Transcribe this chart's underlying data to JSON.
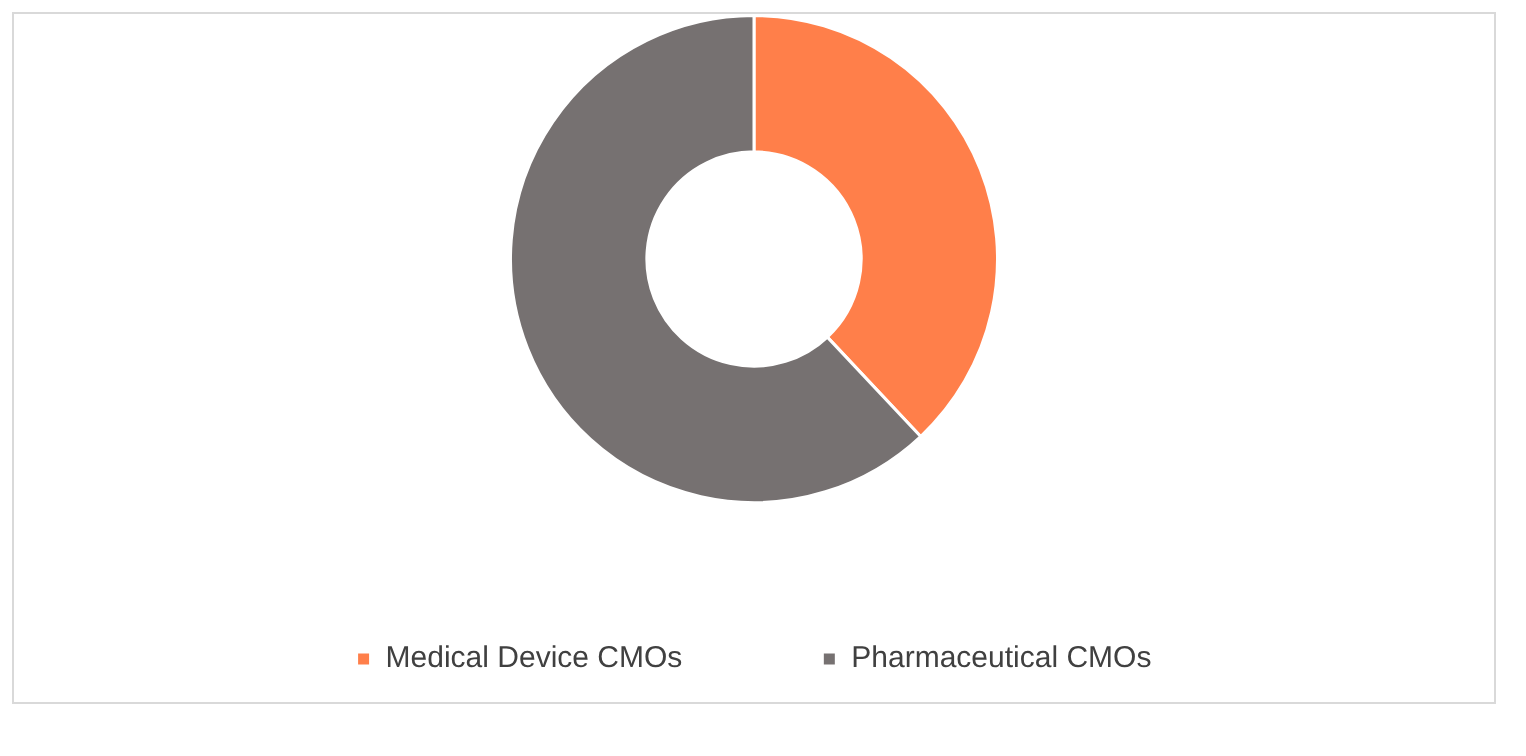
{
  "chart_data": {
    "type": "donut",
    "categories": [
      "Medical Device CMOs",
      "Pharmaceutical CMOs"
    ],
    "values": [
      38,
      62
    ],
    "colors": [
      "#ff7f4a",
      "#767171"
    ],
    "legend": "bottom"
  }
}
